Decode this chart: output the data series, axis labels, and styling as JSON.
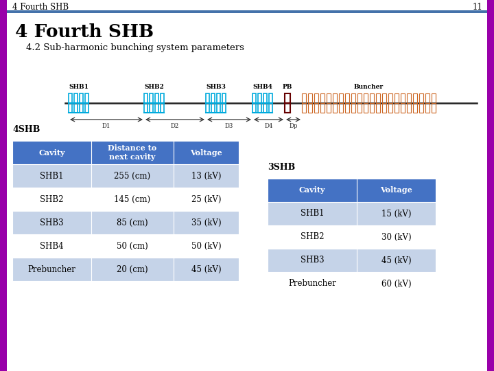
{
  "background_color": "#ffffff",
  "border_color": "#9900AA",
  "header_text": "4 Fourth SHB",
  "header_number": "11",
  "title": "4 Fourth SHB",
  "subtitle": "4.2 Sub-harmonic bunching system parameters",
  "table4shb_label": "4SHB",
  "table3shb_label": "3SHB",
  "table4shb_headers": [
    "Cavity",
    "Distance to\nnext cavity",
    "Voltage"
  ],
  "table4shb_rows": [
    [
      "SHB1",
      "255 (cm)",
      "13 (kV)"
    ],
    [
      "SHB2",
      "145 (cm)",
      "25 (kV)"
    ],
    [
      "SHB3",
      "85 (cm)",
      "35 (kV)"
    ],
    [
      "SHB4",
      "50 (cm)",
      "50 (kV)"
    ],
    [
      "Prebuncher",
      "20 (cm)",
      "45 (kV)"
    ]
  ],
  "table3shb_headers": [
    "Cavity",
    "Voltage"
  ],
  "table3shb_rows": [
    [
      "SHB1",
      "15 (kV)"
    ],
    [
      "SHB2",
      "30 (kV)"
    ],
    [
      "SHB3",
      "45 (kV)"
    ],
    [
      "Prebuncher",
      "60 (kV)"
    ]
  ],
  "header_bg": "#4472C4",
  "row_odd_bg": "#C5D3E8",
  "row_even_bg": "#ffffff",
  "header_fg": "#ffffff",
  "cell_fg": "#000000",
  "shb_color": "#00AADD",
  "buncher_color": "#CC6622",
  "pb_color": "#660000",
  "header_line_color": "#4472AA",
  "shb_labels": [
    "SHB1",
    "SHB2",
    "SHB3",
    "SHB4",
    "PB",
    "Buncher"
  ],
  "dist_labels": [
    "D1",
    "D2",
    "D3",
    "D4",
    "Dp"
  ]
}
